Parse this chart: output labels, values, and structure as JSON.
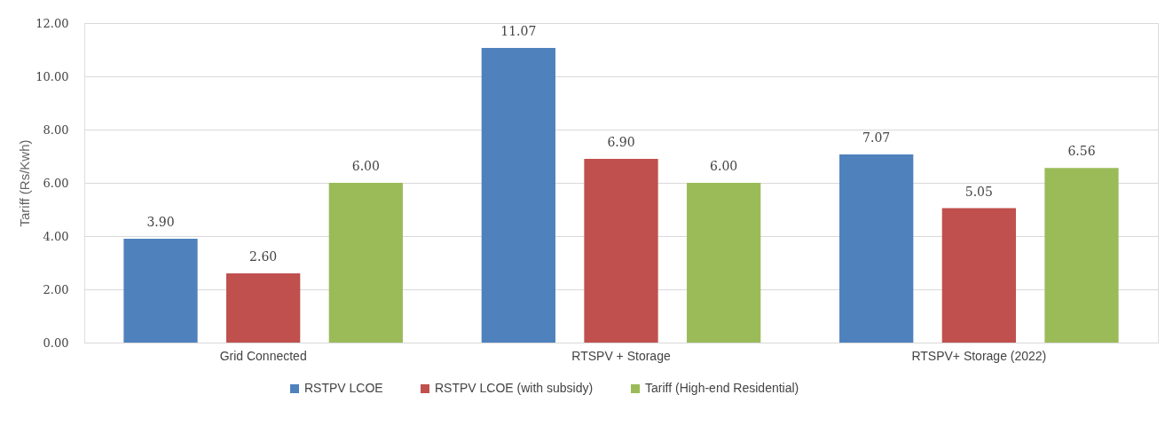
{
  "chart_data": {
    "type": "bar",
    "ylabel": "Tariff (Rs/Kwh)",
    "categories": [
      "Grid Connected",
      "RTSPV + Storage",
      "RTSPV+ Storage (2022)"
    ],
    "series": [
      {
        "name": "RSTPV LCOE",
        "color": "#4f81bd",
        "values": [
          3.9,
          11.07,
          7.07
        ],
        "value_labels": [
          "3.90",
          "11.07",
          "7.07"
        ]
      },
      {
        "name": "RSTPV LCOE (with subsidy)",
        "color": "#c0504d",
        "values": [
          2.6,
          6.9,
          5.05
        ],
        "value_labels": [
          "2.60",
          "6.90",
          "5.05"
        ]
      },
      {
        "name": "Tariff (High-end Residential)",
        "color": "#9bbb59",
        "values": [
          6.0,
          6.0,
          6.56
        ],
        "value_labels": [
          "6.00",
          "6.00",
          "6.56"
        ]
      }
    ],
    "ylim": [
      0,
      12
    ],
    "yticks": [
      {
        "value": 0,
        "label": "0.00"
      },
      {
        "value": 2,
        "label": "2.00"
      },
      {
        "value": 4,
        "label": "4.00"
      },
      {
        "value": 6,
        "label": "6.00"
      },
      {
        "value": 8,
        "label": "8.00"
      },
      {
        "value": 10,
        "label": "10.00"
      },
      {
        "value": 12,
        "label": "12.00"
      }
    ],
    "grid": "y",
    "legend": "bottom"
  }
}
